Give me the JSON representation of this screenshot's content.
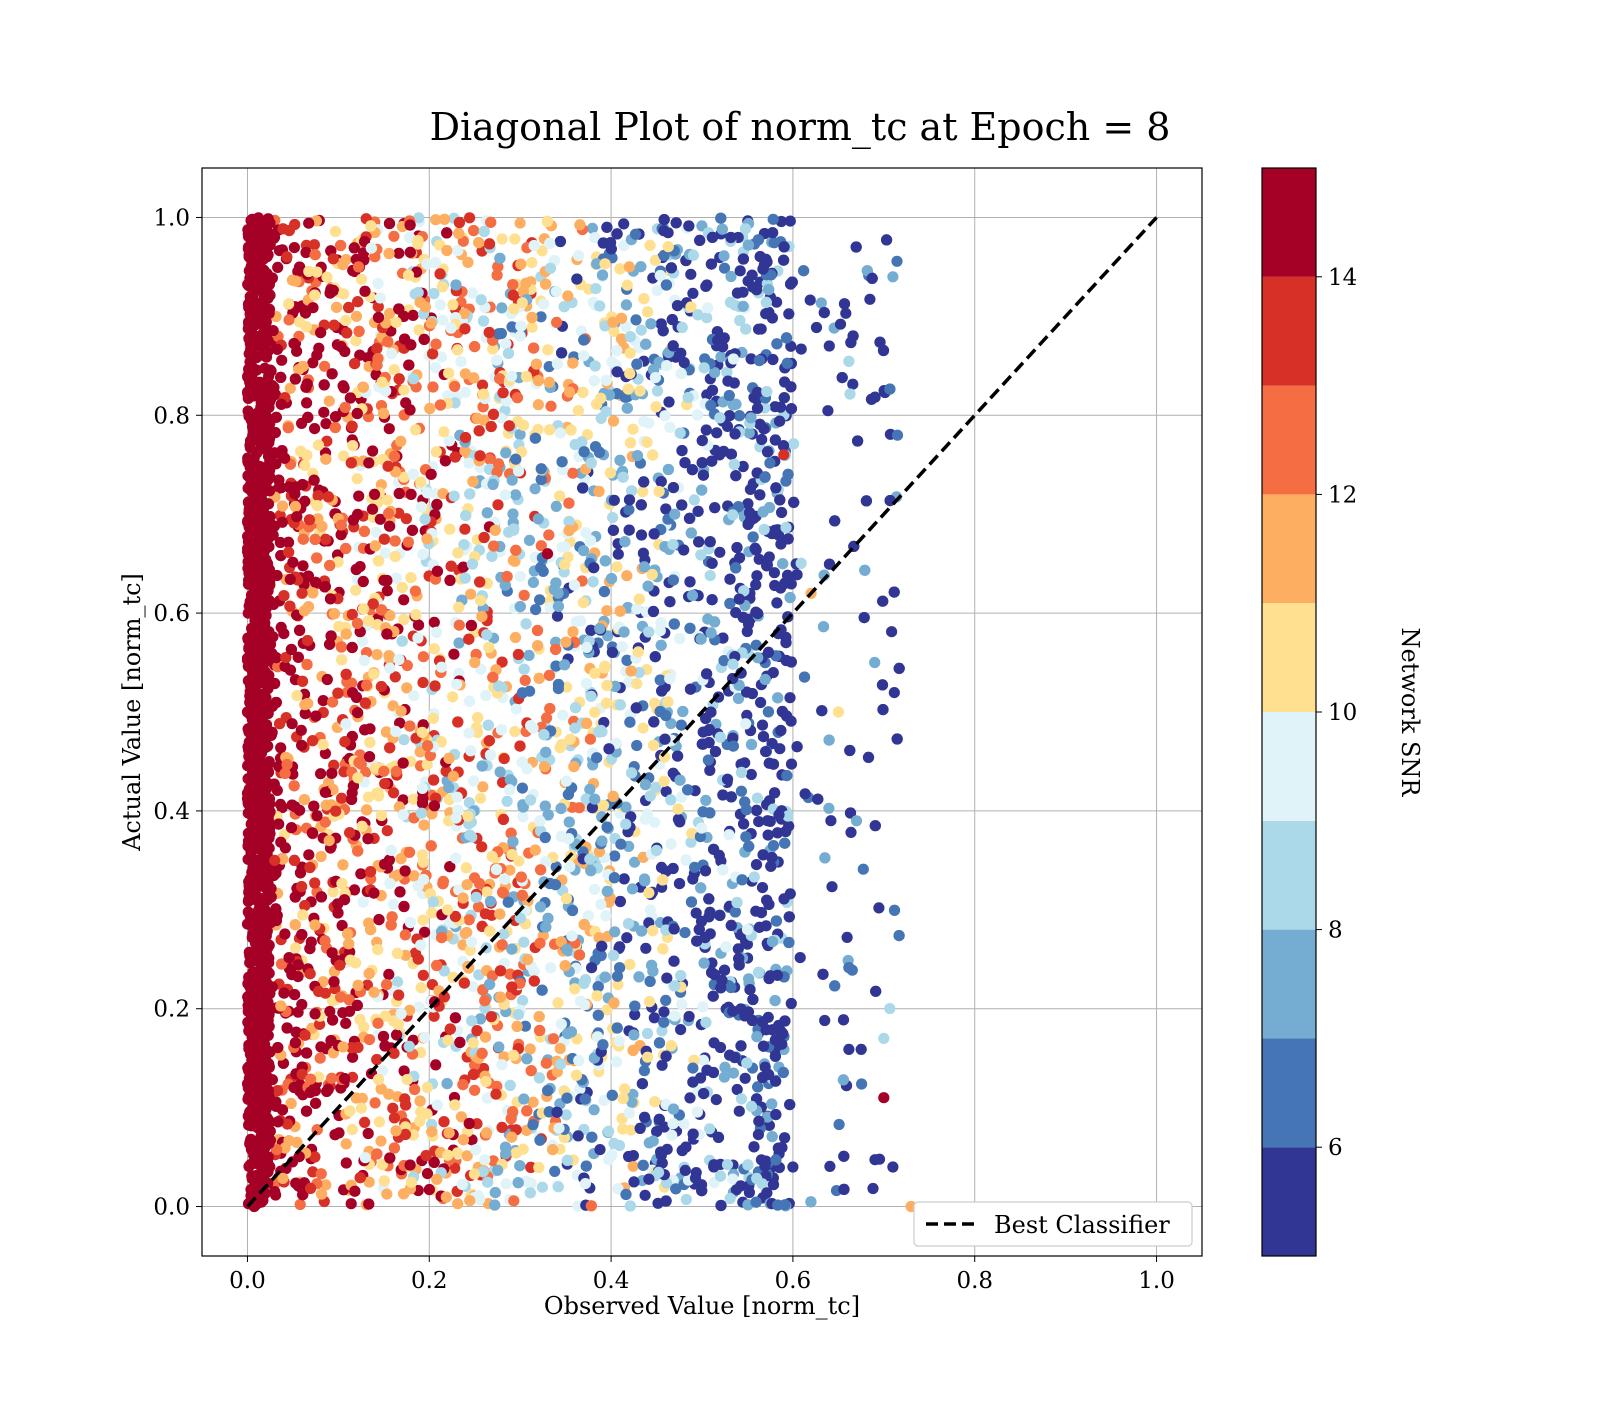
{
  "chart_data": {
    "type": "scatter",
    "title": "Diagonal Plot of norm_tc at Epoch = 8",
    "xlabel": "Observed Value [norm_tc]",
    "ylabel": "Actual Value [norm_tc]",
    "xlim": [
      -0.05,
      1.05
    ],
    "ylim": [
      -0.05,
      1.05
    ],
    "x_ticks": [
      0.0,
      0.2,
      0.4,
      0.6,
      0.8,
      1.0
    ],
    "y_ticks": [
      0.0,
      0.2,
      0.4,
      0.6,
      0.8,
      1.0
    ],
    "x_tick_labels": [
      "0.0",
      "0.2",
      "0.4",
      "0.6",
      "0.8",
      "1.0"
    ],
    "y_tick_labels": [
      "0.0",
      "0.2",
      "0.4",
      "0.6",
      "0.8",
      "1.0"
    ],
    "grid": true,
    "legend": {
      "placement": "lower-right",
      "entries": [
        "Best Classifier"
      ]
    },
    "reference_line": {
      "name": "Best Classifier",
      "style": "dashed",
      "color": "#000000",
      "x": [
        0.0,
        1.0
      ],
      "y": [
        0.0,
        1.0
      ]
    },
    "colorbar": {
      "label": "Network SNR",
      "min": 5,
      "max": 15,
      "ticks": [
        6,
        8,
        10,
        12,
        14
      ],
      "tick_labels": [
        "6",
        "8",
        "10",
        "12",
        "14"
      ],
      "bins": [
        {
          "from": 5,
          "to": 6,
          "color": "#313695"
        },
        {
          "from": 6,
          "to": 7,
          "color": "#4575b4"
        },
        {
          "from": 7,
          "to": 8,
          "color": "#74add1"
        },
        {
          "from": 8,
          "to": 9,
          "color": "#abd9e9"
        },
        {
          "from": 9,
          "to": 10,
          "color": "#e0f3f8"
        },
        {
          "from": 10,
          "to": 11,
          "color": "#fee090"
        },
        {
          "from": 11,
          "to": 12,
          "color": "#fdae61"
        },
        {
          "from": 12,
          "to": 13,
          "color": "#f46d43"
        },
        {
          "from": 13,
          "to": 14,
          "color": "#d73027"
        },
        {
          "from": 14,
          "to": 15,
          "color": "#a50026"
        }
      ]
    },
    "series": [
      {
        "x_range": [
          0.0,
          0.73
        ],
        "y_range": [
          0.0,
          1.0
        ],
        "color_by": "Network SNR",
        "points": [
          [
            0.0,
            0.5,
            14.8
          ],
          [
            0.01,
            0.2,
            14.5
          ],
          [
            0.02,
            0.8,
            14.6
          ],
          [
            0.03,
            0.35,
            13.4
          ],
          [
            0.06,
            0.62,
            13.2
          ],
          [
            0.08,
            0.15,
            12.6
          ],
          [
            0.12,
            0.9,
            11.8
          ],
          [
            0.15,
            0.44,
            12.8
          ],
          [
            0.18,
            0.72,
            14.2
          ],
          [
            0.22,
            0.3,
            10.4
          ],
          [
            0.25,
            0.55,
            11.2
          ],
          [
            0.28,
            0.08,
            13.6
          ],
          [
            0.3,
            0.88,
            9.6
          ],
          [
            0.33,
            0.66,
            14.1
          ],
          [
            0.36,
            0.22,
            10.8
          ],
          [
            0.39,
            0.48,
            8.7
          ],
          [
            0.42,
            0.95,
            11.6
          ],
          [
            0.45,
            0.36,
            8.2
          ],
          [
            0.47,
            0.7,
            7.3
          ],
          [
            0.49,
            0.14,
            6.4
          ],
          [
            0.51,
            0.58,
            7.6
          ],
          [
            0.53,
            0.82,
            6.1
          ],
          [
            0.55,
            0.28,
            9.3
          ],
          [
            0.57,
            0.46,
            5.6
          ],
          [
            0.59,
            0.76,
            13.7
          ],
          [
            0.6,
            0.04,
            5.4
          ],
          [
            0.62,
            0.62,
            11.9
          ],
          [
            0.64,
            0.87,
            5.8
          ],
          [
            0.65,
            0.5,
            10.7
          ],
          [
            0.67,
            0.39,
            7.1
          ],
          [
            0.69,
            0.55,
            7.9
          ],
          [
            0.7,
            0.17,
            8.1
          ],
          [
            0.7,
            0.11,
            14.0
          ],
          [
            0.71,
            0.04,
            5.9
          ],
          [
            0.71,
            0.94,
            7.5
          ],
          [
            0.73,
            0.0,
            11.4
          ]
        ]
      }
    ]
  }
}
